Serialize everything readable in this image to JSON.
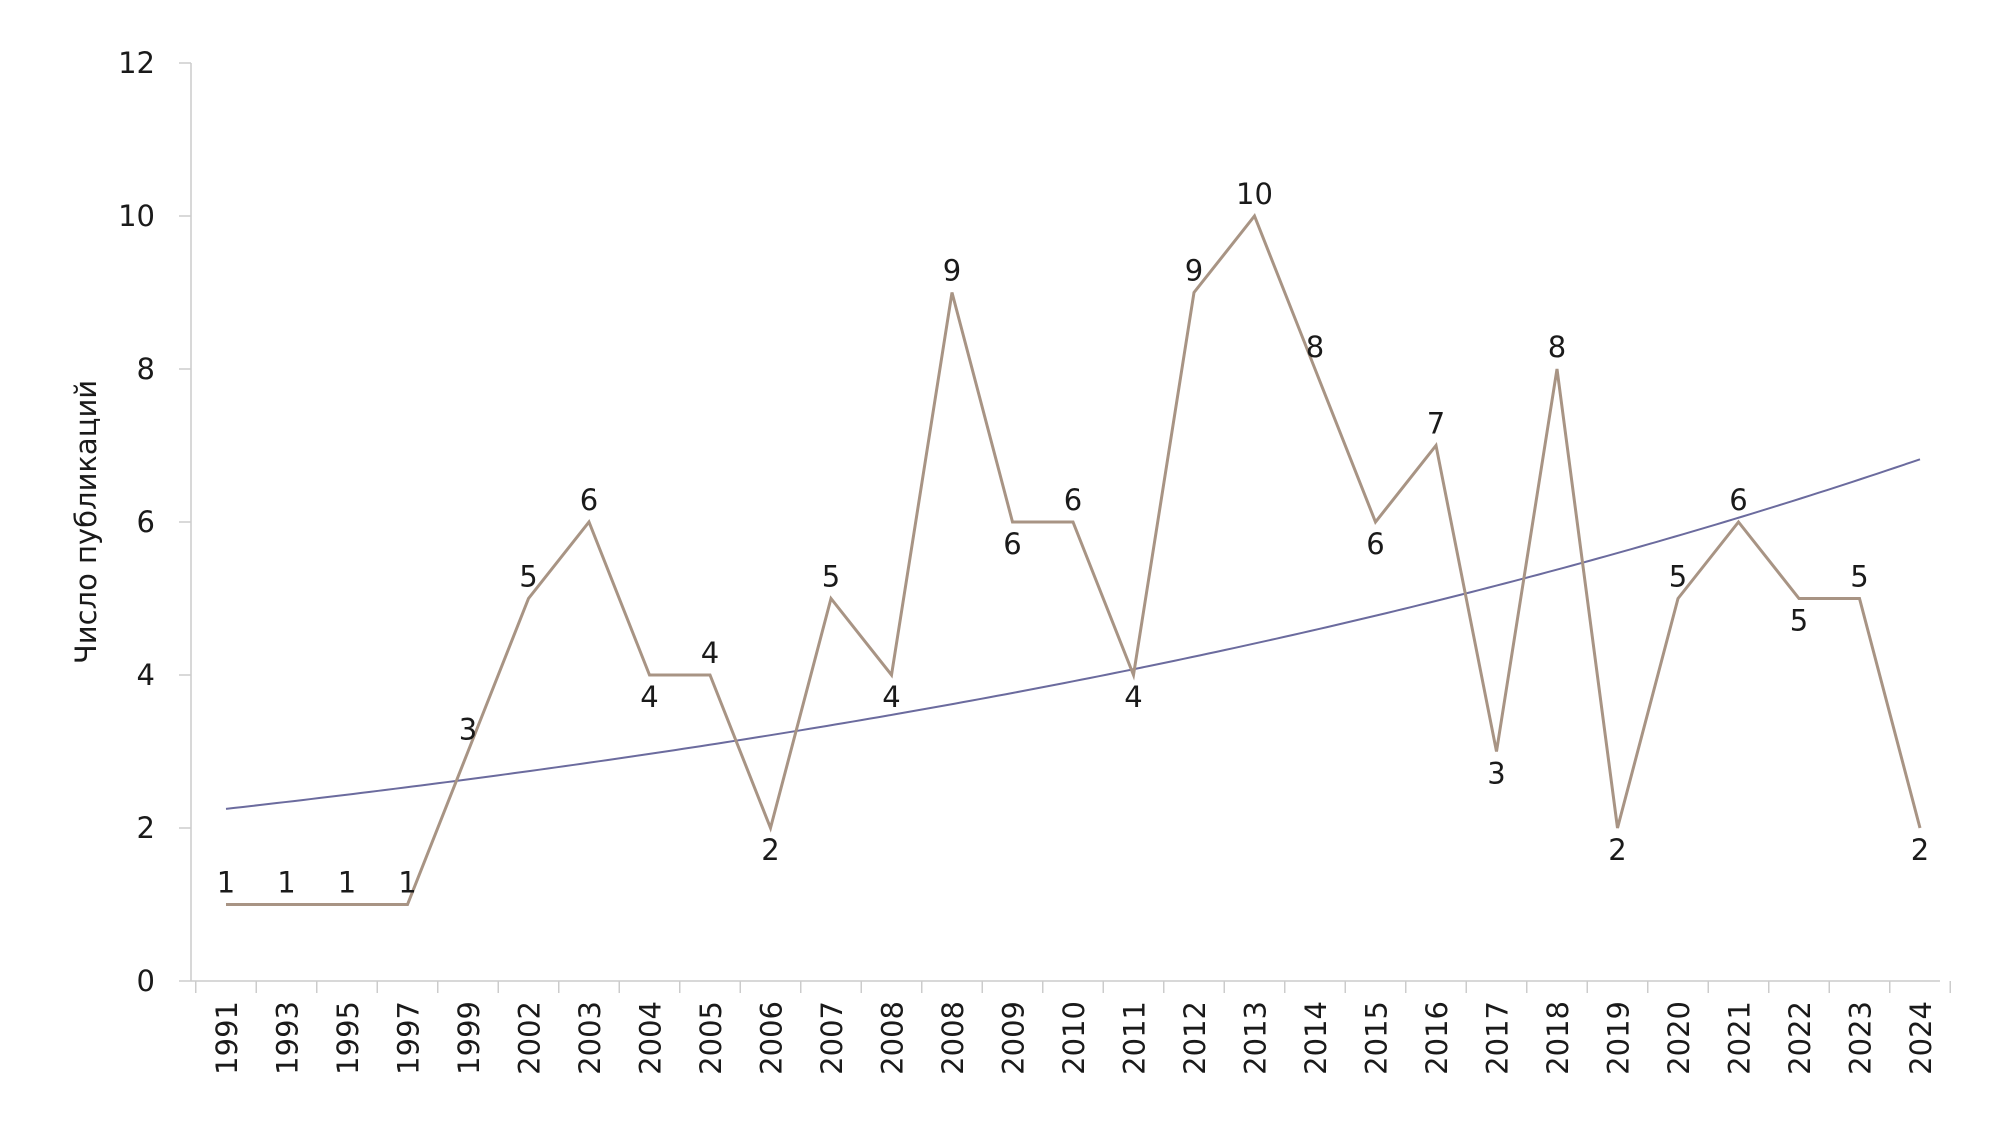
{
  "chart_data": {
    "type": "line",
    "title": "",
    "xlabel": "",
    "ylabel": "Число публикаций",
    "ylim": [
      0,
      12
    ],
    "yticks": [
      0,
      2,
      4,
      6,
      8,
      10,
      12
    ],
    "grid": false,
    "legend": "none",
    "categories": [
      "1991",
      "1993",
      "1995",
      "1997",
      "1999",
      "2002",
      "2003",
      "2004",
      "2005",
      "2006",
      "2007",
      "2008",
      "2008",
      "2009",
      "2010",
      "2011",
      "2012",
      "2013",
      "2014",
      "2015",
      "2016",
      "2017",
      "2018",
      "2019",
      "2020",
      "2021",
      "2022",
      "2023",
      "2024"
    ],
    "series": [
      {
        "values": [
          1,
          1,
          1,
          1,
          3,
          5,
          6,
          4,
          4,
          2,
          5,
          4,
          9,
          6,
          6,
          4,
          9,
          10,
          8,
          6,
          7,
          3,
          8,
          2,
          5,
          6,
          5,
          5,
          2
        ],
        "labels": [
          "1",
          "1",
          "1",
          "1",
          "3",
          "5",
          "6",
          "4",
          "4",
          "2",
          "5",
          "4",
          "9",
          "6",
          "6",
          "4",
          "9",
          "10",
          "8",
          "6",
          "7",
          "3",
          "8",
          "2",
          "5",
          "6",
          "5",
          "5",
          "2"
        ],
        "color": "#a89484"
      },
      {
        "type": "trendline",
        "kind": "exponential",
        "start_value": 2.25,
        "end_value": 6.82,
        "color": "#6b6b9e"
      }
    ]
  }
}
